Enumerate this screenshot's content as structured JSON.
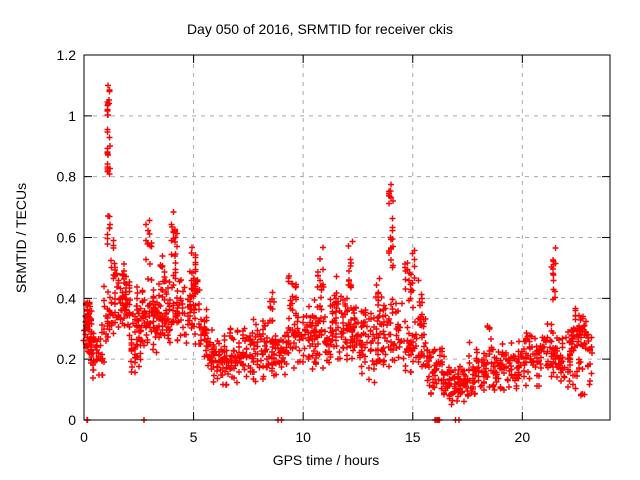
{
  "chart_data": {
    "type": "scatter",
    "title": "Day 050 of 2016, SRMTID for receiver ckis",
    "xlabel": "GPS time / hours",
    "ylabel": "SRMTID / TECUs",
    "xlim": [
      0,
      24
    ],
    "ylim": [
      0,
      1.2
    ],
    "xtick_labels": [
      "0",
      "5",
      "10",
      "15",
      "20"
    ],
    "xtick_values": [
      0,
      5,
      10,
      15,
      20
    ],
    "ytick_labels": [
      "0",
      "0.2",
      "0.4",
      "0.6",
      "0.8",
      "1",
      "1.2"
    ],
    "ytick_values": [
      0,
      0.2,
      0.4,
      0.6,
      0.8,
      1,
      1.2
    ],
    "grid": true,
    "legend": "none",
    "marker": "plus",
    "colors": {
      "marker": "#ff0000",
      "grid": "#a8a8a8",
      "border": "#000000",
      "background": "#ffffff",
      "text": "#000000"
    },
    "series_name": "SRMTID",
    "clusters": [
      [
        1.05,
        1.18,
        1.0,
        1.11,
        12
      ],
      [
        1.05,
        1.18,
        0.76,
        0.97,
        16
      ],
      [
        1.08,
        1.16,
        0.55,
        0.72,
        8
      ],
      [
        1.25,
        1.42,
        0.44,
        0.63,
        10
      ],
      [
        2.85,
        3.05,
        0.45,
        0.7,
        12
      ],
      [
        3.45,
        3.65,
        0.42,
        0.55,
        8
      ],
      [
        4.0,
        4.3,
        0.45,
        0.75,
        20
      ],
      [
        4.85,
        5.15,
        0.35,
        0.63,
        28
      ],
      [
        8.45,
        8.7,
        0.3,
        0.45,
        8
      ],
      [
        9.3,
        9.5,
        0.28,
        0.52,
        10
      ],
      [
        9.65,
        9.8,
        0.28,
        0.47,
        7
      ],
      [
        10.65,
        10.95,
        0.35,
        0.57,
        14
      ],
      [
        11.35,
        11.5,
        0.3,
        0.5,
        8
      ],
      [
        12.05,
        12.25,
        0.35,
        0.6,
        12
      ],
      [
        13.35,
        13.55,
        0.3,
        0.5,
        10
      ],
      [
        13.88,
        14.08,
        0.7,
        0.775,
        10
      ],
      [
        13.88,
        14.12,
        0.45,
        0.7,
        14
      ],
      [
        14.6,
        15.1,
        0.35,
        0.58,
        22
      ],
      [
        15.25,
        15.45,
        0.28,
        0.48,
        10
      ],
      [
        21.33,
        21.5,
        0.33,
        0.59,
        14
      ],
      [
        18.4,
        18.6,
        0.22,
        0.31,
        8
      ],
      [
        20.15,
        20.35,
        0.2,
        0.33,
        8
      ],
      [
        0.0,
        0.35,
        0.18,
        0.42,
        40
      ],
      [
        0.05,
        0.25,
        0.28,
        0.4,
        10
      ],
      [
        0.3,
        0.9,
        0.12,
        0.32,
        45
      ],
      [
        0.9,
        1.35,
        0.22,
        0.45,
        30
      ],
      [
        1.4,
        2.1,
        0.28,
        0.52,
        70
      ],
      [
        2.1,
        2.6,
        0.13,
        0.45,
        55
      ],
      [
        2.6,
        3.3,
        0.2,
        0.48,
        60
      ],
      [
        3.3,
        3.9,
        0.18,
        0.5,
        55
      ],
      [
        3.9,
        4.6,
        0.22,
        0.48,
        45
      ],
      [
        4.6,
        5.3,
        0.22,
        0.5,
        40
      ],
      [
        5.3,
        5.7,
        0.16,
        0.4,
        30
      ],
      [
        5.7,
        6.6,
        0.1,
        0.3,
        70
      ],
      [
        6.6,
        7.6,
        0.1,
        0.32,
        70
      ],
      [
        7.6,
        8.6,
        0.1,
        0.35,
        70
      ],
      [
        8.6,
        9.3,
        0.12,
        0.32,
        50
      ],
      [
        9.3,
        10.3,
        0.14,
        0.4,
        60
      ],
      [
        10.3,
        11.3,
        0.15,
        0.42,
        75
      ],
      [
        11.3,
        12.5,
        0.17,
        0.42,
        85
      ],
      [
        12.5,
        13.5,
        0.12,
        0.38,
        70
      ],
      [
        13.5,
        14.5,
        0.17,
        0.42,
        60
      ],
      [
        14.5,
        15.6,
        0.12,
        0.38,
        60
      ],
      [
        15.6,
        16.4,
        0.07,
        0.27,
        55
      ],
      [
        16.4,
        17.5,
        0.04,
        0.19,
        80
      ],
      [
        17.5,
        18.7,
        0.06,
        0.26,
        75
      ],
      [
        18.7,
        19.8,
        0.08,
        0.26,
        65
      ],
      [
        19.8,
        20.9,
        0.1,
        0.3,
        65
      ],
      [
        20.9,
        21.6,
        0.12,
        0.35,
        45
      ],
      [
        21.6,
        22.25,
        0.1,
        0.3,
        45
      ],
      [
        22.2,
        23.0,
        0.2,
        0.37,
        60
      ],
      [
        22.25,
        22.8,
        0.08,
        0.2,
        15
      ],
      [
        23.0,
        23.2,
        0.1,
        0.33,
        12
      ]
    ],
    "zero_points": [
      0.13,
      0.16,
      2.74,
      8.85,
      9.0,
      16.02,
      16.07,
      16.12,
      16.17,
      16.22,
      16.95,
      17.1
    ]
  }
}
